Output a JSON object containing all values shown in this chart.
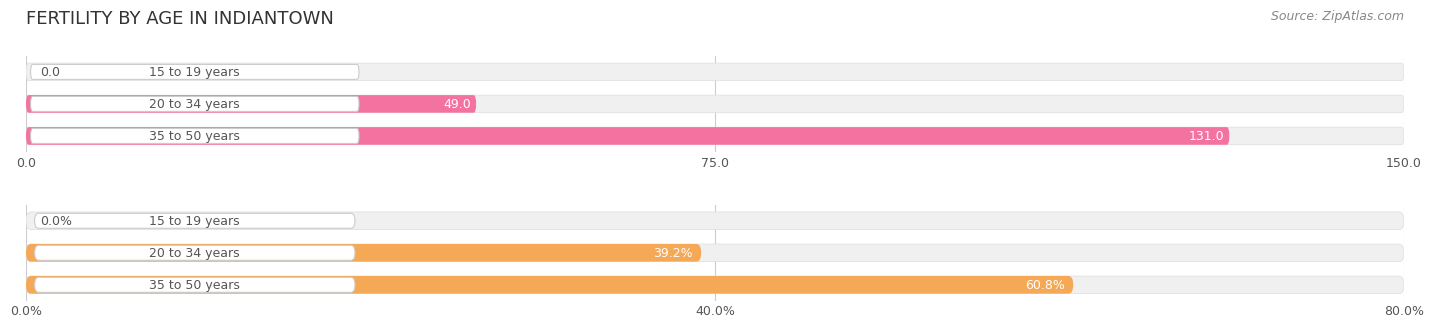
{
  "title": "FERTILITY BY AGE IN INDIANTOWN",
  "source": "Source: ZipAtlas.com",
  "top_section": {
    "categories": [
      "15 to 19 years",
      "20 to 34 years",
      "35 to 50 years"
    ],
    "values": [
      0.0,
      49.0,
      131.0
    ],
    "xlim": [
      0,
      150
    ],
    "xticks": [
      0.0,
      75.0,
      150.0
    ],
    "bar_color": "#f472a0",
    "bar_bg_color": "#f0f0f0",
    "label_color": "#555555",
    "value_color_inside": "#ffffff",
    "value_color_outside": "#555555"
  },
  "bottom_section": {
    "categories": [
      "15 to 19 years",
      "20 to 34 years",
      "35 to 50 years"
    ],
    "values": [
      0.0,
      39.2,
      60.8
    ],
    "xlim": [
      0,
      80
    ],
    "xticks": [
      0.0,
      40.0,
      80.0
    ],
    "xtick_labels": [
      "0.0%",
      "40.0%",
      "80.0%"
    ],
    "bar_color": "#f5a855",
    "bar_bg_color": "#f0f0f0",
    "label_color": "#555555",
    "value_color_inside": "#ffffff",
    "value_color_outside": "#555555"
  },
  "title_fontsize": 13,
  "source_fontsize": 9,
  "label_fontsize": 9,
  "value_fontsize": 9,
  "tick_fontsize": 9,
  "background_color": "#ffffff",
  "bar_height": 0.55,
  "label_bg_color": "#ffffff",
  "label_border_color": "#dddddd"
}
